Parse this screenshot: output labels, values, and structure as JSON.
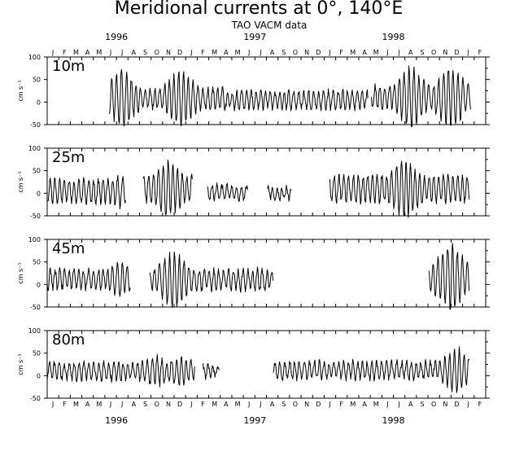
{
  "chart_data": {
    "type": "line",
    "title": "Meridional currents at 0°, 140°E",
    "subtitle": "TAO VACM data",
    "ylabel": "cm s⁻¹",
    "x_month_ticks": [
      "J",
      "F",
      "M",
      "A",
      "M",
      "J",
      "J",
      "A",
      "S",
      "O",
      "N",
      "D",
      "J",
      "F",
      "M",
      "A",
      "M",
      "J",
      "J",
      "A",
      "S",
      "O",
      "N",
      "D",
      "J",
      "F",
      "M",
      "A",
      "M",
      "J",
      "J",
      "A",
      "S",
      "O",
      "N",
      "D",
      "J",
      "F"
    ],
    "x_year_labels": [
      "1996",
      "1997",
      "1998"
    ],
    "ylim": [
      -50,
      100
    ],
    "yticks": [
      "100",
      "50",
      "0",
      "-50"
    ],
    "xlim_months": [
      0,
      38
    ],
    "panels": [
      {
        "name": "10m",
        "segments": [
          {
            "start": 5.4,
            "end": 15.5,
            "mean": 8,
            "amp": 22,
            "amp_peak": 65,
            "peak_months": [
              6.5,
              11.5
            ]
          },
          {
            "start": 15.5,
            "end": 27.8,
            "mean": 5,
            "amp": 18,
            "amp_peak": 22,
            "peak_months": []
          },
          {
            "start": 28.1,
            "end": 36.7,
            "mean": 10,
            "amp": 25,
            "amp_peak": 70,
            "peak_months": [
              31.5,
              35.0
            ]
          }
        ]
      },
      {
        "name": "25m",
        "segments": [
          {
            "start": 0.0,
            "end": 6.8,
            "mean": 5,
            "amp": 25,
            "amp_peak": 35,
            "peak_months": [
              6.2
            ]
          },
          {
            "start": 8.3,
            "end": 12.6,
            "mean": 10,
            "amp": 30,
            "amp_peak": 65,
            "peak_months": [
              10.5
            ]
          },
          {
            "start": 13.9,
            "end": 17.4,
            "mean": 2,
            "amp": 15,
            "amp_peak": 15,
            "peak_months": []
          },
          {
            "start": 19.1,
            "end": 21.2,
            "mean": 0,
            "amp": 12,
            "amp_peak": 12,
            "peak_months": []
          },
          {
            "start": 24.5,
            "end": 36.6,
            "mean": 10,
            "amp": 28,
            "amp_peak": 70,
            "peak_months": [
              31.0
            ]
          }
        ]
      },
      {
        "name": "45m",
        "segments": [
          {
            "start": 0.0,
            "end": 7.2,
            "mean": 12,
            "amp": 20,
            "amp_peak": 40,
            "peak_months": [
              6.3
            ]
          },
          {
            "start": 8.9,
            "end": 19.6,
            "mean": 10,
            "amp": 22,
            "amp_peak": 65,
            "peak_months": [
              11.0
            ]
          },
          {
            "start": 33.1,
            "end": 36.6,
            "mean": 15,
            "amp": 35,
            "amp_peak": 75,
            "peak_months": [
              35.0
            ]
          }
        ]
      },
      {
        "name": "80m",
        "segments": [
          {
            "start": 0.0,
            "end": 12.8,
            "mean": 10,
            "amp": 18,
            "amp_peak": 35,
            "peak_months": [
              9.5,
              11.5
            ]
          },
          {
            "start": 13.5,
            "end": 14.9,
            "mean": 10,
            "amp": 12,
            "amp_peak": 12,
            "peak_months": []
          },
          {
            "start": 19.6,
            "end": 36.6,
            "mean": 12,
            "amp": 18,
            "amp_peak": 50,
            "peak_months": [
              35.5
            ]
          }
        ]
      }
    ]
  }
}
